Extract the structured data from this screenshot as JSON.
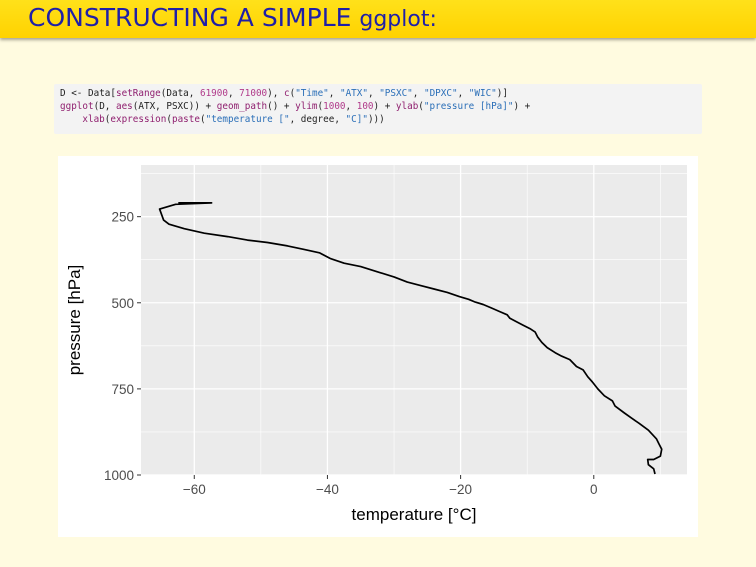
{
  "slide": {
    "title_main": "CONSTRUCTING A SIMPLE ",
    "title_code": "ggplot:"
  },
  "code": {
    "line1": [
      {
        "t": "D ",
        "c": "kw"
      },
      {
        "t": "<-",
        "c": "kw"
      },
      {
        "t": " Data[",
        "c": "kw"
      },
      {
        "t": "setRange",
        "c": "fn"
      },
      {
        "t": "(Data, ",
        "c": "kw"
      },
      {
        "t": "61900",
        "c": "num"
      },
      {
        "t": ", ",
        "c": "kw"
      },
      {
        "t": "71000",
        "c": "num"
      },
      {
        "t": "), ",
        "c": "kw"
      },
      {
        "t": "c",
        "c": "fn"
      },
      {
        "t": "(",
        "c": "kw"
      },
      {
        "t": "\"Time\"",
        "c": "str"
      },
      {
        "t": ", ",
        "c": "kw"
      },
      {
        "t": "\"ATX\"",
        "c": "str"
      },
      {
        "t": ", ",
        "c": "kw"
      },
      {
        "t": "\"PSXC\"",
        "c": "str"
      },
      {
        "t": ", ",
        "c": "kw"
      },
      {
        "t": "\"DPXC\"",
        "c": "str"
      },
      {
        "t": ", ",
        "c": "kw"
      },
      {
        "t": "\"WIC\"",
        "c": "str"
      },
      {
        "t": ")]",
        "c": "kw"
      }
    ],
    "line2": [
      {
        "t": "ggplot",
        "c": "fn"
      },
      {
        "t": "(D, ",
        "c": "kw"
      },
      {
        "t": "aes",
        "c": "fn"
      },
      {
        "t": "(ATX, PSXC)) + ",
        "c": "kw"
      },
      {
        "t": "geom_path",
        "c": "fn"
      },
      {
        "t": "() + ",
        "c": "kw"
      },
      {
        "t": "ylim",
        "c": "fn"
      },
      {
        "t": "(",
        "c": "kw"
      },
      {
        "t": "1000",
        "c": "num"
      },
      {
        "t": ", ",
        "c": "kw"
      },
      {
        "t": "100",
        "c": "num"
      },
      {
        "t": ") + ",
        "c": "kw"
      },
      {
        "t": "ylab",
        "c": "fn"
      },
      {
        "t": "(",
        "c": "kw"
      },
      {
        "t": "\"pressure [hPa]\"",
        "c": "str"
      },
      {
        "t": ") +",
        "c": "kw"
      }
    ],
    "line3": [
      {
        "t": "    ",
        "c": "kw"
      },
      {
        "t": "xlab",
        "c": "fn"
      },
      {
        "t": "(",
        "c": "kw"
      },
      {
        "t": "expression",
        "c": "fn"
      },
      {
        "t": "(",
        "c": "kw"
      },
      {
        "t": "paste",
        "c": "fn"
      },
      {
        "t": "(",
        "c": "kw"
      },
      {
        "t": "\"temperature [\"",
        "c": "str"
      },
      {
        "t": ", degree, ",
        "c": "kw"
      },
      {
        "t": "\"C]\"",
        "c": "str"
      },
      {
        "t": ")))",
        "c": "kw"
      }
    ]
  },
  "chart_data": {
    "type": "line",
    "xlabel": "temperature [°C]",
    "ylabel": "pressure [hPa]",
    "xlim": [
      -68,
      14
    ],
    "ylim": [
      1000,
      100
    ],
    "y_reversed": true,
    "x_ticks": [
      -60,
      -40,
      -20,
      0
    ],
    "x_tick_labels": [
      "−60",
      "−40",
      "−20",
      "0"
    ],
    "y_ticks": [
      250,
      500,
      750,
      1000
    ],
    "y_tick_labels": [
      "250",
      "500",
      "750",
      "1000"
    ],
    "grid": true,
    "series": [
      {
        "color": "#000000",
        "x": [
          9.2,
          9.0,
          8.2,
          8.1,
          9.0,
          10.0,
          10.2,
          9.8,
          9.4,
          8.2,
          6.8,
          5.7,
          4.6,
          3.2,
          2.8,
          1.6,
          0.6,
          -0.2,
          -0.9,
          -1.6,
          -2.6,
          -3.6,
          -4.8,
          -5.8,
          -7.0,
          -7.8,
          -8.4,
          -8.8,
          -9.6,
          -10.6,
          -11.6,
          -12.6,
          -13.0,
          -14.2,
          -15.4,
          -16.6,
          -17.8,
          -18.8,
          -20.2,
          -22.0,
          -24.0,
          -26.0,
          -28.0,
          -30.0,
          -32.5,
          -35.0,
          -37.5,
          -39.5,
          -41.2,
          -43.5,
          -46.0,
          -49.0,
          -52.0,
          -55.0,
          -58.5,
          -61.5,
          -63.8,
          -64.6,
          -65.2,
          -62.8,
          -57.4,
          -62.4
        ],
        "y": [
          997,
          982,
          970,
          955,
          955,
          945,
          925,
          910,
          895,
          870,
          850,
          835,
          820,
          800,
          785,
          770,
          750,
          730,
          715,
          695,
          685,
          665,
          655,
          645,
          630,
          615,
          600,
          585,
          575,
          565,
          555,
          545,
          535,
          525,
          515,
          505,
          498,
          490,
          482,
          470,
          460,
          450,
          440,
          425,
          410,
          395,
          385,
          372,
          355,
          345,
          335,
          325,
          318,
          308,
          298,
          285,
          272,
          260,
          228,
          214,
          210,
          210
        ]
      }
    ]
  }
}
